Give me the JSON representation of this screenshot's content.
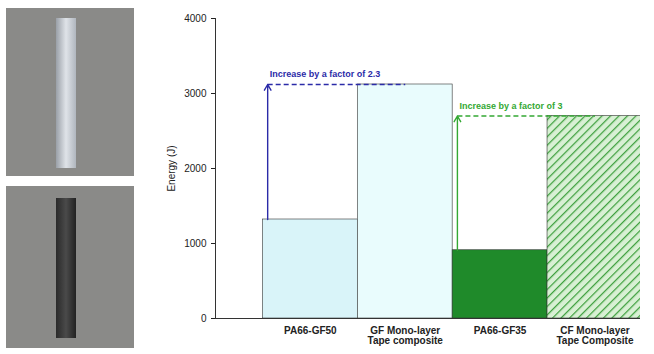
{
  "chart_data": {
    "type": "bar",
    "categories": [
      "PA66-GF50",
      "GF Mono-layer\nTape composite",
      "PA66-GF35",
      "CF Mono-layer\nTape Composite"
    ],
    "values": [
      1320,
      3120,
      910,
      2700
    ],
    "colors": [
      "#d9f4f9",
      "#e9fcfd",
      "#1f8a2a",
      "#3fa03f"
    ],
    "ylabel": "Energy (J)",
    "ylim": [
      0,
      4000
    ],
    "yticks": [
      0,
      1000,
      2000,
      3000,
      4000
    ],
    "grid": false,
    "annotations": [
      {
        "text": "Increase by a factor of 2.3",
        "from": "PA66-GF50",
        "to": "GF Mono-layer\nTape composite",
        "color": "#2b2ba8"
      },
      {
        "text": "Increase by a factor of 3",
        "from": "PA66-GF35",
        "to": "CF Mono-layer\nTape Composite",
        "color": "#33a833"
      }
    ]
  }
}
